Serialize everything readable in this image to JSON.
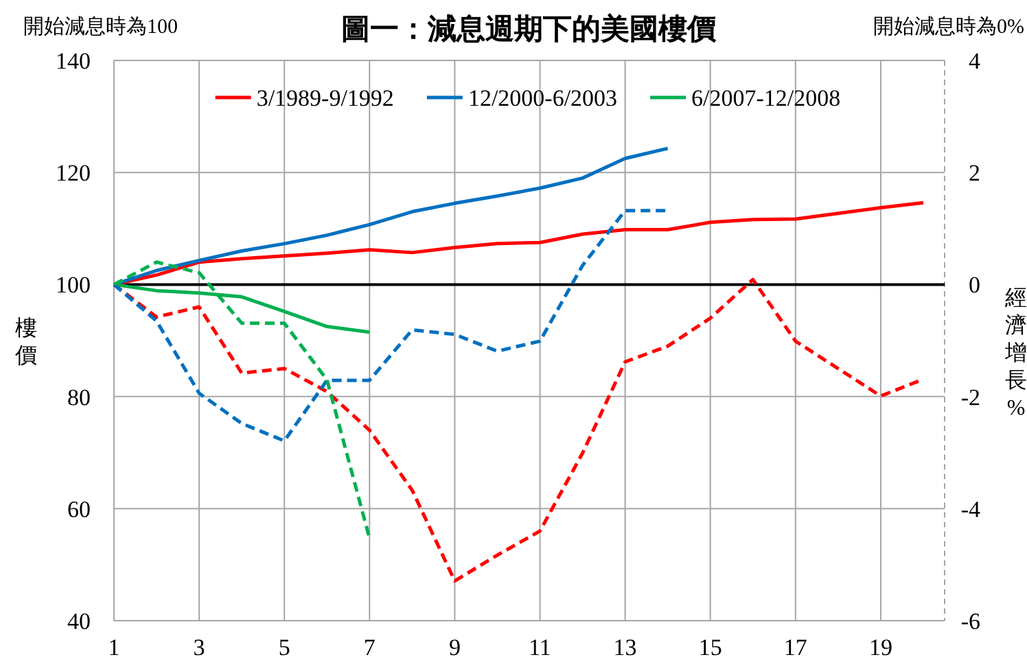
{
  "chart_data": {
    "type": "line",
    "title": "圖一：減息週期下的美國樓價",
    "ylabel": "樓價",
    "y2label": "經濟增長%",
    "annotations": [
      "開始減息時為100",
      "開始減息時為0%"
    ],
    "xlim": [
      1,
      20.5
    ],
    "xticks": [
      1,
      3,
      5,
      7,
      9,
      11,
      13,
      15,
      17,
      19
    ],
    "ylim": [
      40,
      140
    ],
    "yticks": [
      40,
      60,
      80,
      100,
      120,
      140
    ],
    "y2lim": [
      -6,
      4
    ],
    "y2ticks": [
      -6,
      -4,
      -2,
      0,
      2,
      4
    ],
    "grid": true,
    "legend": "top",
    "ref_lines": [
      {
        "axis": "y",
        "value": 100,
        "color": "#000000"
      }
    ],
    "series": [
      {
        "name": "3/1989-9/1992",
        "color": "#ff0000",
        "line_style": "solid",
        "x": [
          1,
          2,
          3,
          4,
          5,
          6,
          7,
          8,
          9,
          10,
          11,
          12,
          13,
          14,
          15,
          16,
          17,
          18,
          19,
          20
        ],
        "values": [
          100,
          101.7,
          104,
          104.6,
          105.1,
          105.6,
          106.2,
          105.7,
          106.6,
          107.3,
          107.5,
          109,
          109.8,
          109.8,
          111.1,
          111.6,
          111.7,
          112.7,
          113.7,
          114.6
        ]
      },
      {
        "name": "12/2000-6/2003",
        "color": "#0070c0",
        "line_style": "solid",
        "x": [
          1,
          2,
          3,
          4,
          5,
          6,
          7,
          8,
          9,
          10,
          11,
          12,
          13,
          14
        ],
        "values": [
          100,
          102.5,
          104.3,
          106,
          107.3,
          108.8,
          110.7,
          113,
          114.5,
          115.8,
          117.2,
          119,
          122.5,
          124.3
        ]
      },
      {
        "name": "6/2007-12/2008",
        "color": "#00b050",
        "line_style": "solid",
        "x": [
          1,
          2,
          3,
          4,
          5,
          6,
          7
        ],
        "values": [
          100,
          98.9,
          98.5,
          97.8,
          95.2,
          92.5,
          91.5
        ]
      },
      {
        "color": "#ff0000",
        "line_style": "dashed",
        "axis": "y2",
        "x": [
          1,
          2,
          3,
          4,
          5,
          6,
          7,
          8,
          9,
          10,
          11,
          12,
          13,
          14,
          15,
          16,
          17,
          18,
          19,
          20
        ],
        "values": [
          0,
          -0.58,
          -0.4,
          -1.58,
          -1.5,
          -1.91,
          -2.6,
          -3.67,
          -5.29,
          -4.83,
          -4.4,
          -3.01,
          -1.38,
          -1.1,
          -0.6,
          0.09,
          -1.01,
          -1.5,
          -1.99,
          -1.69
        ]
      },
      {
        "color": "#0070c0",
        "line_style": "dashed",
        "axis": "y2",
        "x": [
          1,
          2,
          3,
          4,
          5,
          6,
          7,
          8,
          9,
          10,
          11,
          12,
          13,
          14
        ],
        "values": [
          0,
          -0.65,
          -1.94,
          -2.48,
          -2.79,
          -1.71,
          -1.71,
          -0.81,
          -0.89,
          -1.19,
          -1.01,
          0.34,
          1.32,
          1.32
        ]
      },
      {
        "color": "#00b050",
        "line_style": "dashed",
        "axis": "y2",
        "x": [
          1,
          2,
          3,
          4,
          5,
          6,
          7
        ],
        "values": [
          0,
          0.4,
          0.21,
          -0.69,
          -0.69,
          -1.7,
          -4.53
        ]
      }
    ]
  }
}
